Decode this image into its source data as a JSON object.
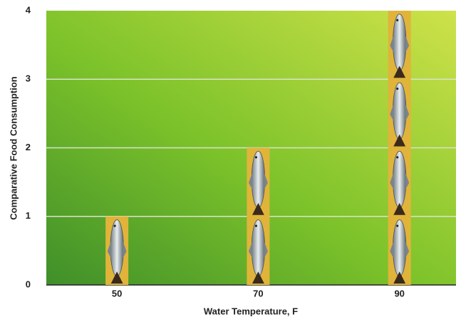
{
  "chart_data": {
    "type": "pictograph-bar",
    "x_label": "Water Temperature, F",
    "y_label": "Comparative Food Consumption",
    "x": [
      50,
      70,
      90
    ],
    "values": [
      1,
      2,
      4
    ],
    "color": "#e0b43a",
    "xlim": [
      40,
      98
    ],
    "xticks": [
      50,
      70,
      90
    ],
    "ylim": [
      0,
      4
    ],
    "yticks": [
      0,
      1,
      2,
      3,
      4
    ],
    "grid": true
  }
}
